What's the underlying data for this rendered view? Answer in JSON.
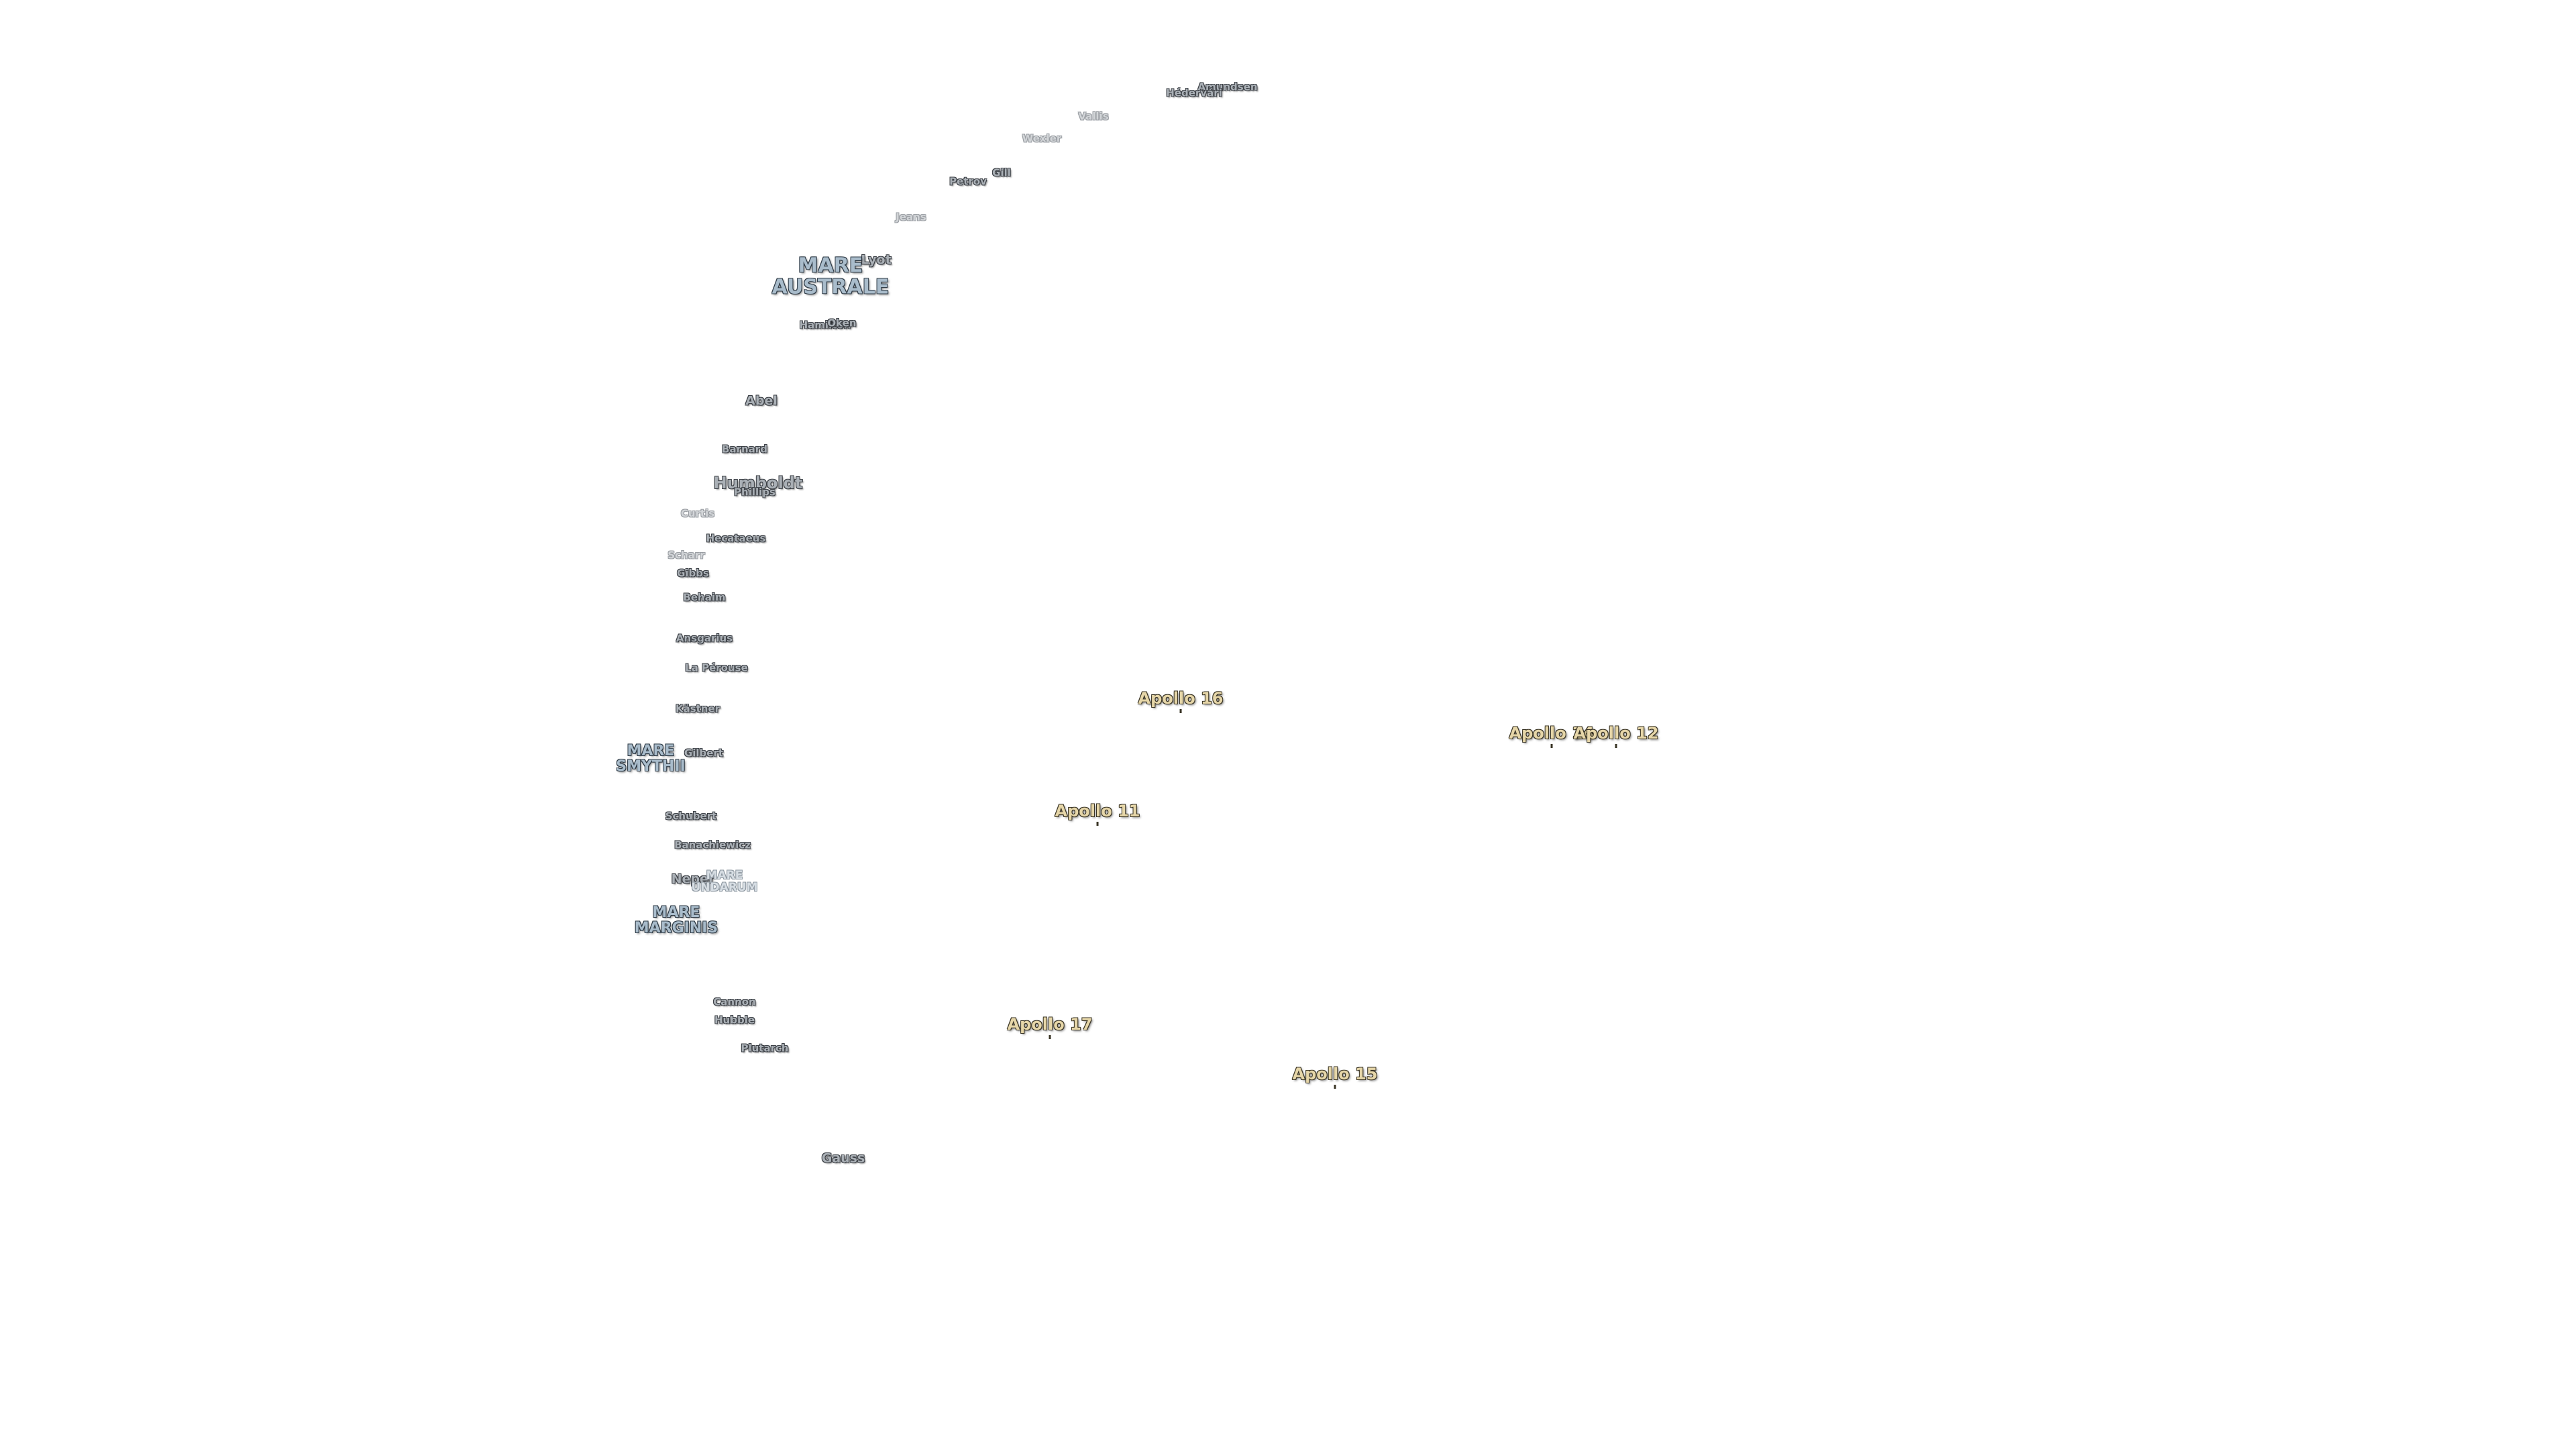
{
  "labels": [
    {
      "name": "Amundsen",
      "kind": "crater"
    },
    {
      "name": "Hédervári",
      "kind": "crater"
    },
    {
      "name": "Vallis",
      "kind": "crater-faint"
    },
    {
      "name": "Wexler",
      "kind": "crater-faint"
    },
    {
      "name": "Gill",
      "kind": "crater"
    },
    {
      "name": "Petrov",
      "kind": "crater"
    },
    {
      "name": "Jeans",
      "kind": "crater-faint"
    },
    {
      "name": "Lyot",
      "kind": "crater"
    },
    {
      "name": "MARE\nAUSTRALE",
      "kind": "mare-large"
    },
    {
      "name": "Hamilton",
      "kind": "crater"
    },
    {
      "name": "Oken",
      "kind": "crater"
    },
    {
      "name": "Abel",
      "kind": "crater"
    },
    {
      "name": "Barnard",
      "kind": "crater"
    },
    {
      "name": "Humboldt",
      "kind": "crater-big"
    },
    {
      "name": "Phillips",
      "kind": "crater"
    },
    {
      "name": "Curtis",
      "kind": "crater-faint"
    },
    {
      "name": "Hecataeus",
      "kind": "crater"
    },
    {
      "name": "Scharr",
      "kind": "crater-faint"
    },
    {
      "name": "Gibbs",
      "kind": "crater"
    },
    {
      "name": "Behaim",
      "kind": "crater"
    },
    {
      "name": "Ansgarius",
      "kind": "crater"
    },
    {
      "name": "La Pérouse",
      "kind": "crater"
    },
    {
      "name": "Kästner",
      "kind": "crater"
    },
    {
      "name": "Gilbert",
      "kind": "crater"
    },
    {
      "name": "MARE\nSMYTHII",
      "kind": "mare"
    },
    {
      "name": "Schubert",
      "kind": "crater"
    },
    {
      "name": "Banachiewicz",
      "kind": "crater"
    },
    {
      "name": "Neper",
      "kind": "crater"
    },
    {
      "name": "MARE\nUNDARUM",
      "kind": "mare-faint"
    },
    {
      "name": "MARE\nMARGINIS",
      "kind": "mare"
    },
    {
      "name": "Cannon",
      "kind": "crater"
    },
    {
      "name": "Hubble",
      "kind": "crater"
    },
    {
      "name": "Plutarch",
      "kind": "crater"
    },
    {
      "name": "Gauss",
      "kind": "crater-mid"
    },
    {
      "name": "Apollo 16",
      "kind": "apollo"
    },
    {
      "name": "Apollo 14",
      "kind": "apollo"
    },
    {
      "name": "Apollo 12",
      "kind": "apollo"
    },
    {
      "name": "Apollo 11",
      "kind": "apollo"
    },
    {
      "name": "Apollo 17",
      "kind": "apollo"
    },
    {
      "name": "Apollo 15",
      "kind": "apollo"
    }
  ]
}
